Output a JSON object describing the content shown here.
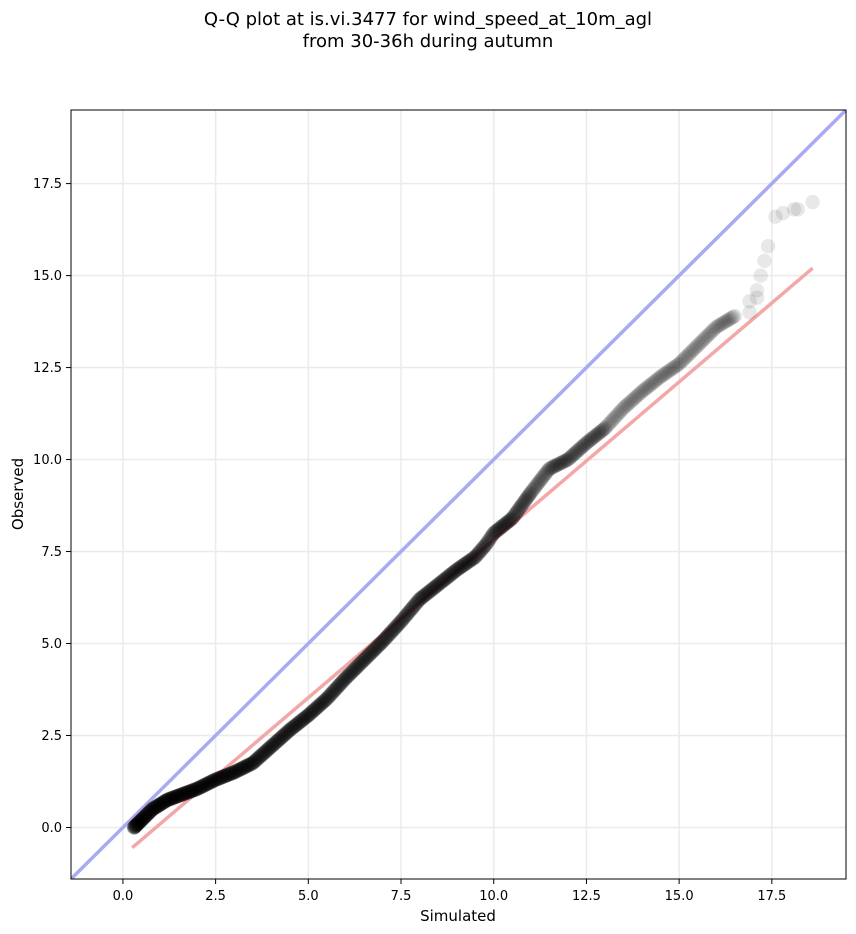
{
  "chart_data": {
    "type": "scatter",
    "title": "Q-Q plot at is.vi.3477 for wind_speed_at_10m_agl",
    "subtitle": "from 30-36h during autumn",
    "xlabel": "Simulated",
    "ylabel": "Observed",
    "xlim": [
      -1.4,
      19.5
    ],
    "ylim": [
      -1.4,
      19.5
    ],
    "xticks": [
      0.0,
      2.5,
      5.0,
      7.5,
      10.0,
      12.5,
      15.0,
      17.5
    ],
    "yticks": [
      0.0,
      2.5,
      5.0,
      7.5,
      10.0,
      12.5,
      15.0,
      17.5
    ],
    "xtick_labels": [
      "0.0",
      "2.5",
      "5.0",
      "7.5",
      "10.0",
      "12.5",
      "15.0",
      "17.5"
    ],
    "ytick_labels": [
      "0.0",
      "2.5",
      "5.0",
      "7.5",
      "10.0",
      "12.5",
      "15.0",
      "17.5"
    ],
    "grid": true,
    "reference_lines": [
      {
        "kind": "identity",
        "color": "#a9aaf2",
        "x": [
          -1.4,
          19.5
        ],
        "y": [
          -1.4,
          19.5
        ]
      },
      {
        "kind": "fit",
        "color": "#f4a7a7",
        "x": [
          0.25,
          18.6
        ],
        "y": [
          -0.55,
          15.2
        ]
      }
    ],
    "quantile_curve": {
      "x": [
        0.3,
        0.5,
        0.8,
        1.2,
        1.6,
        2.0,
        2.5,
        3.0,
        3.5,
        4.0,
        4.5,
        5.0,
        5.5,
        6.0,
        6.5,
        7.0,
        7.5,
        8.0,
        8.5,
        9.0,
        9.5,
        9.8,
        10.0,
        10.5,
        11.0,
        11.5,
        12.0,
        12.5,
        13.0,
        13.5,
        14.0,
        14.5,
        15.0,
        15.5,
        16.0,
        16.5
      ],
      "y": [
        0.0,
        0.2,
        0.5,
        0.75,
        0.9,
        1.05,
        1.3,
        1.5,
        1.75,
        2.2,
        2.65,
        3.05,
        3.5,
        4.05,
        4.55,
        5.05,
        5.6,
        6.2,
        6.6,
        7.0,
        7.35,
        7.7,
        8.0,
        8.4,
        9.1,
        9.75,
        10.0,
        10.45,
        10.85,
        11.4,
        11.85,
        12.25,
        12.6,
        13.1,
        13.6,
        13.9
      ]
    },
    "points": [
      [
        16.9,
        14.0
      ],
      [
        16.9,
        14.3
      ],
      [
        17.1,
        14.4
      ],
      [
        17.1,
        14.6
      ],
      [
        17.2,
        15.0
      ],
      [
        17.3,
        15.4
      ],
      [
        17.4,
        15.8
      ],
      [
        17.6,
        16.6
      ],
      [
        17.8,
        16.7
      ],
      [
        18.1,
        16.8
      ],
      [
        18.2,
        16.8
      ],
      [
        18.6,
        17.0
      ]
    ],
    "point_color": "#000000"
  }
}
